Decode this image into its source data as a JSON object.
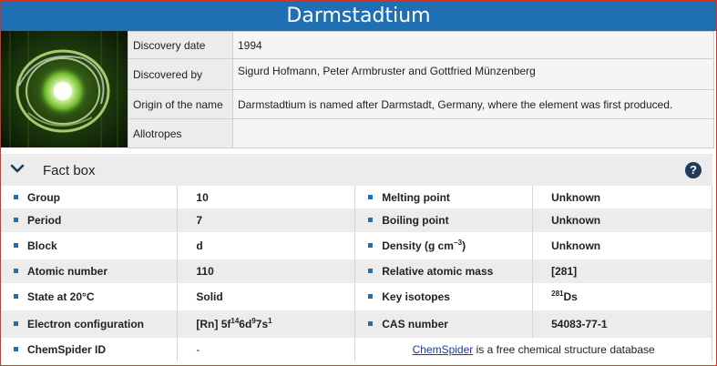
{
  "element": {
    "name": "Darmstadtium"
  },
  "info": {
    "discovery_date_label": "Discovery date",
    "discovery_date_value": "1994",
    "discovered_by_label": "Discovered by",
    "discovered_by_value": "Sigurd Hofmann, Peter Armbruster and Gottfried Münzenberg",
    "origin_label": "Origin of the name",
    "origin_value": "Darmstadtium is named after Darmstadt, Germany, where the element was first produced.",
    "allotropes_label": "Allotropes",
    "allotropes_value": ""
  },
  "fact_box": {
    "title": "Fact box",
    "help_symbol": "?",
    "icons": {
      "collapse": "chevron-down-icon",
      "help": "help-icon"
    },
    "accent_color": "#1f6fb5",
    "group_label": "Group",
    "group_value": "10",
    "period_label": "Period",
    "period_value": "7",
    "block_label": "Block",
    "block_value": "d",
    "atomic_number_label": "Atomic number",
    "atomic_number_value": "110",
    "state_label": "State at 20°C",
    "state_value": "Solid",
    "electron_config_label": "Electron configuration",
    "electron_config_prefix": "[Rn] 5f",
    "electron_config_sup1": "14",
    "electron_config_mid1": "6d",
    "electron_config_sup2": "9",
    "electron_config_mid2": "7s",
    "electron_config_sup3": "1",
    "chemspider_label": "ChemSpider ID",
    "chemspider_value": "-",
    "melting_label": "Melting point",
    "melting_value": "Unknown",
    "boiling_label": "Boiling point",
    "boiling_value": "Unknown",
    "density_label_prefix": "Density (g cm",
    "density_label_sup": "−3",
    "density_label_suffix": ")",
    "density_value": "Unknown",
    "mass_label": "Relative atomic mass",
    "mass_value": "[281]",
    "isotopes_label": "Key isotopes",
    "isotopes_sup": "281",
    "isotopes_symbol": "Ds",
    "cas_label": "CAS number",
    "cas_value": "54083-77-1",
    "chemspider_link": "ChemSpider",
    "chemspider_note": " is a free chemical structure database"
  }
}
